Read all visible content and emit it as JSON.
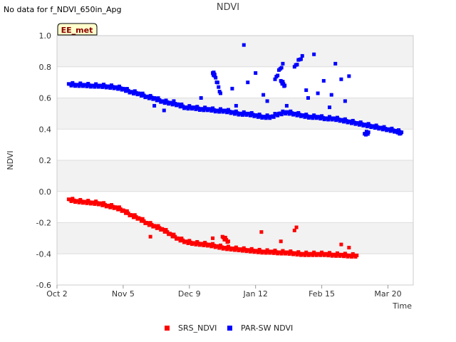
{
  "no_data_message": "No data for f_NDVI_650in_Apg",
  "chart_data": {
    "type": "scatter",
    "title": "NDVI",
    "xlabel": "Time",
    "ylabel": "NDVI",
    "ylim": [
      -0.6,
      1.0
    ],
    "yticks": [
      "1.0",
      "0.8",
      "0.6",
      "0.4",
      "0.2",
      "0.0",
      "-0.2",
      "-0.4",
      "-0.6"
    ],
    "ytick_values": [
      1.0,
      0.8,
      0.6,
      0.4,
      0.2,
      0.0,
      -0.2,
      -0.4,
      -0.6
    ],
    "x_unit": "days since Oct 2",
    "xlim": [
      0,
      183
    ],
    "xticks": [
      "Oct 2",
      "Nov 5",
      "Dec 9",
      "Jan 12",
      "Feb 15",
      "Mar 20"
    ],
    "xtick_values": [
      0,
      34,
      68,
      102,
      136,
      170
    ],
    "badge": "EE_met",
    "grid": true,
    "legend_position": "bottom",
    "series": [
      {
        "name": "SRS_NDVI",
        "color": "#ff0000",
        "x": [
          6,
          10,
          14,
          18,
          22,
          26,
          30,
          34,
          38,
          42,
          46,
          50,
          54,
          58,
          62,
          66,
          70,
          74,
          78,
          82,
          86,
          90,
          94,
          98,
          102,
          106,
          110,
          114,
          118,
          122,
          126,
          130,
          134,
          138,
          142,
          146,
          150,
          154,
          150,
          146,
          123,
          122,
          105,
          115,
          48,
          80,
          85,
          88
        ],
        "y": [
          -0.05,
          -0.06,
          -0.065,
          -0.07,
          -0.075,
          -0.09,
          -0.1,
          -0.12,
          -0.15,
          -0.17,
          -0.2,
          -0.22,
          -0.24,
          -0.27,
          -0.3,
          -0.32,
          -0.33,
          -0.335,
          -0.34,
          -0.35,
          -0.36,
          -0.365,
          -0.37,
          -0.375,
          -0.38,
          -0.385,
          -0.385,
          -0.39,
          -0.39,
          -0.395,
          -0.4,
          -0.4,
          -0.4,
          -0.4,
          -0.405,
          -0.405,
          -0.41,
          -0.41,
          -0.36,
          -0.34,
          -0.23,
          -0.25,
          -0.26,
          -0.32,
          -0.29,
          -0.3,
          -0.29,
          -0.32
        ]
      },
      {
        "name": "PAR-SW NDVI",
        "color": "#0000ff",
        "x": [
          6,
          10,
          14,
          18,
          22,
          26,
          30,
          34,
          38,
          42,
          46,
          50,
          54,
          58,
          62,
          66,
          70,
          74,
          78,
          82,
          86,
          90,
          94,
          98,
          102,
          106,
          110,
          114,
          118,
          122,
          126,
          130,
          134,
          138,
          142,
          146,
          150,
          154,
          158,
          162,
          166,
          170,
          174,
          177,
          176,
          158,
          160,
          90,
          98,
          106,
          115,
          117,
          128,
          134,
          141,
          146,
          80,
          81,
          84,
          96,
          102,
          112,
          116,
          122,
          126,
          132,
          137,
          143,
          150,
          55,
          50,
          60,
          74,
          92,
          108,
          118,
          129,
          140,
          148
        ],
        "y": [
          0.69,
          0.685,
          0.685,
          0.68,
          0.68,
          0.675,
          0.67,
          0.66,
          0.64,
          0.63,
          0.61,
          0.6,
          0.58,
          0.57,
          0.56,
          0.54,
          0.54,
          0.53,
          0.53,
          0.52,
          0.52,
          0.51,
          0.5,
          0.5,
          0.49,
          0.48,
          0.48,
          0.5,
          0.51,
          0.5,
          0.49,
          0.48,
          0.48,
          0.47,
          0.47,
          0.46,
          0.45,
          0.44,
          0.43,
          0.42,
          0.41,
          0.4,
          0.39,
          0.38,
          0.37,
          0.37,
          0.38,
          0.66,
          0.7,
          0.62,
          0.71,
          0.68,
          0.65,
          0.63,
          0.62,
          0.72,
          0.76,
          0.75,
          0.63,
          0.94,
          0.76,
          0.72,
          0.82,
          0.8,
          0.87,
          0.88,
          0.71,
          0.82,
          0.74,
          0.52,
          0.55,
          0.58,
          0.6,
          0.55,
          0.58,
          0.55,
          0.6,
          0.54,
          0.58
        ]
      }
    ]
  }
}
